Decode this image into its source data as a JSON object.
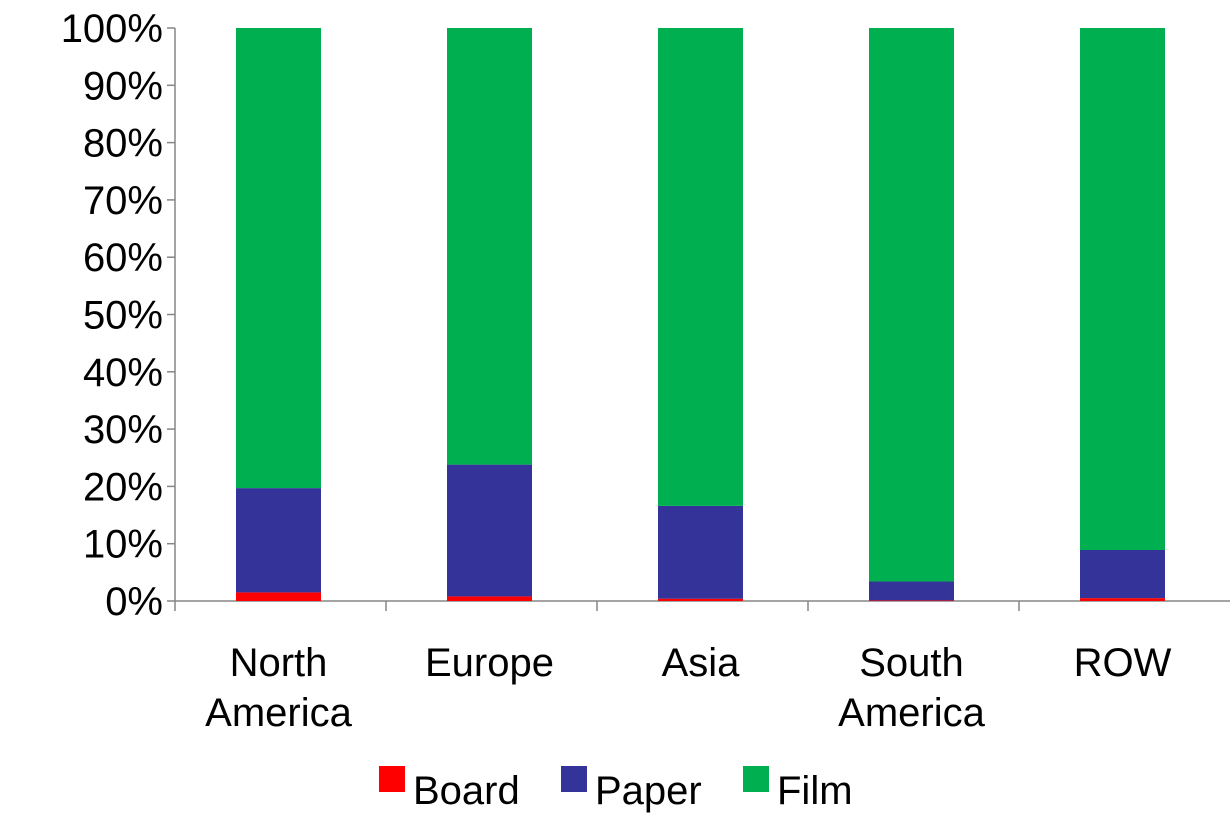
{
  "chart_data": {
    "type": "bar",
    "stacked": true,
    "normalized": true,
    "categories": [
      [
        "North",
        "America"
      ],
      [
        "Europe"
      ],
      [
        "Asia"
      ],
      [
        "South",
        "America"
      ],
      [
        "ROW"
      ]
    ],
    "series": [
      {
        "name": "Board",
        "color": "#ff0000",
        "values": [
          1.5,
          0.8,
          0.4,
          0.1,
          0.5
        ]
      },
      {
        "name": "Paper",
        "color": "#333399",
        "values": [
          18.2,
          23.0,
          16.2,
          3.3,
          8.4
        ]
      },
      {
        "name": "Film",
        "color": "#00b050",
        "values": [
          80.3,
          76.2,
          83.4,
          96.6,
          91.1
        ]
      }
    ],
    "y_ticks": [
      "0%",
      "10%",
      "20%",
      "30%",
      "40%",
      "50%",
      "60%",
      "70%",
      "80%",
      "90%",
      "100%"
    ],
    "ylim": [
      0,
      100
    ],
    "grid": false,
    "legend_position": "bottom",
    "title": "",
    "xlabel": "",
    "ylabel": ""
  }
}
